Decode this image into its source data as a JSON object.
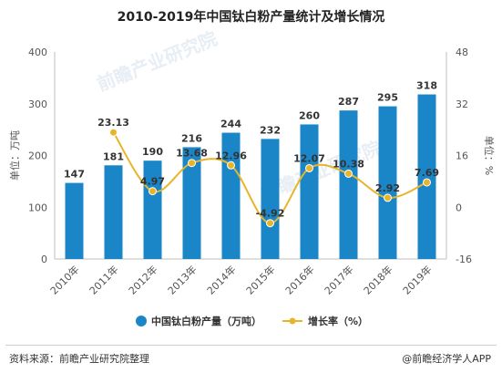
{
  "title": "2010-2019年中国钛白粉产量统计及增长情况",
  "source_label": "资料来源：前瞻产业研究院整理",
  "credit_label": "@前瞻经济学人APP",
  "watermark_text": "前瞻产业研究院",
  "colors": {
    "bar": "#1a86c8",
    "line": "#e8b52a",
    "text": "#333333",
    "grid": "#e2e2e2"
  },
  "chart_data": {
    "type": "bar",
    "categories": [
      "2010年",
      "2011年",
      "2012年",
      "2013年",
      "2014年",
      "2015年",
      "2016年",
      "2017年",
      "2018年",
      "2019年"
    ],
    "series": [
      {
        "name": "中国钛白粉产量（万吨）",
        "type": "bar",
        "axis": "left",
        "values": [
          147,
          181,
          190,
          216,
          244,
          232,
          260,
          287,
          295,
          318
        ],
        "labels": [
          "147",
          "181",
          "190",
          "216",
          "244",
          "232",
          "260",
          "287",
          "295",
          "318"
        ]
      },
      {
        "name": "增长率（%）",
        "type": "line",
        "axis": "right",
        "values": [
          null,
          23.13,
          4.97,
          13.68,
          12.96,
          -4.92,
          12.07,
          10.38,
          2.92,
          7.69
        ],
        "labels": [
          "",
          "23.13",
          "4.97",
          "13.68",
          "12.96",
          "-4.92",
          "12.07",
          "10.38",
          "2.92",
          "7.69"
        ]
      }
    ],
    "ylabel": "单位：万吨",
    "y2label": "单位：%",
    "ylim": [
      0,
      400
    ],
    "y2lim": [
      -16,
      48
    ],
    "yticks": [
      "0",
      "100",
      "200",
      "300",
      "400"
    ],
    "y2ticks": [
      "-16",
      "0",
      "16",
      "32",
      "48"
    ],
    "grid": false,
    "legend": "bottom"
  }
}
